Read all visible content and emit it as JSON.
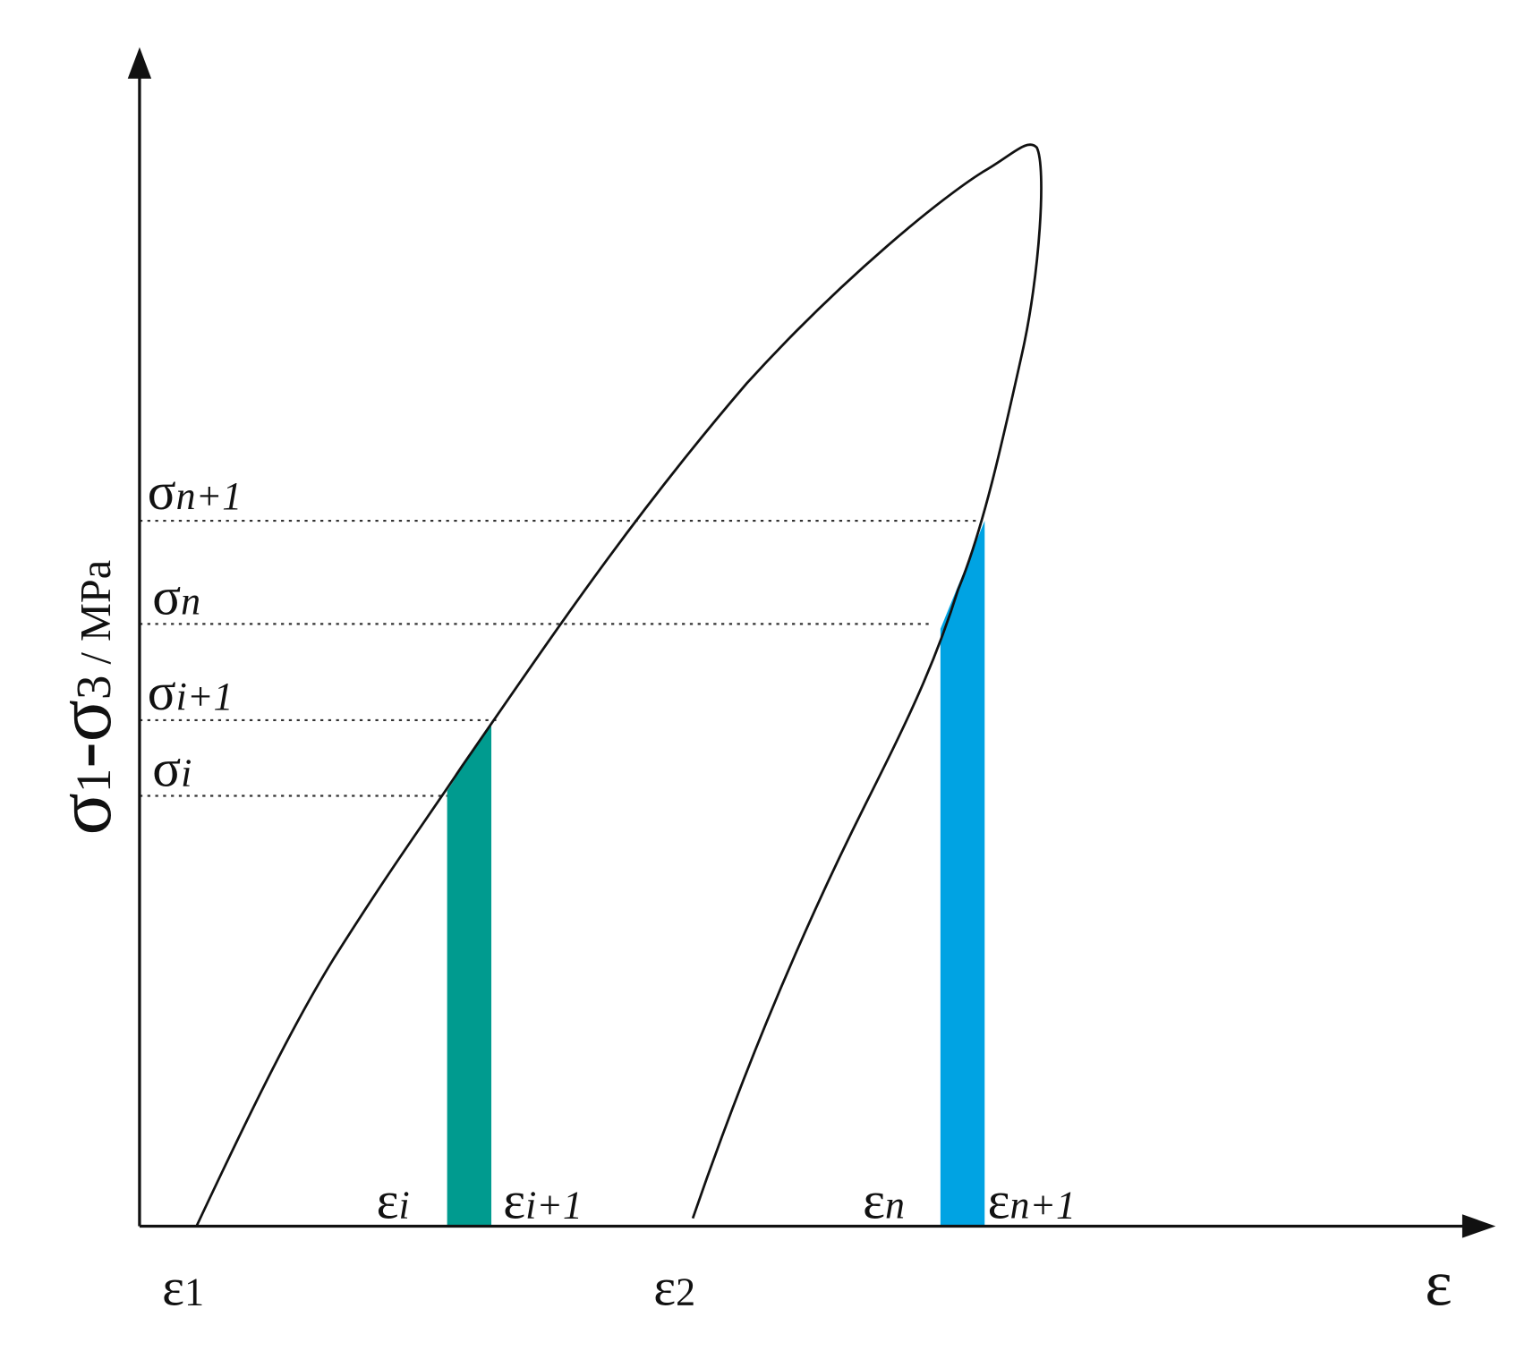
{
  "axis": {
    "y_label": [
      "σ",
      "1",
      "-σ",
      "3",
      " / MPa"
    ],
    "x_label": "ε"
  },
  "stress_labels": [
    {
      "symbol": "σ",
      "subscript": "n+1"
    },
    {
      "symbol": "σ",
      "subscript": "n"
    },
    {
      "symbol": "σ",
      "subscript": "i+1"
    },
    {
      "symbol": "σ",
      "subscript": "i"
    }
  ],
  "strain_labels": [
    {
      "symbol": "ε",
      "subscript": "i"
    },
    {
      "symbol": "ε",
      "subscript": "i+1"
    },
    {
      "symbol": "ε",
      "subscript": "n"
    },
    {
      "symbol": "ε",
      "subscript": "n+1"
    },
    {
      "symbol": "ε",
      "subscript": "1"
    },
    {
      "symbol": "ε",
      "subscript": "2"
    }
  ]
}
